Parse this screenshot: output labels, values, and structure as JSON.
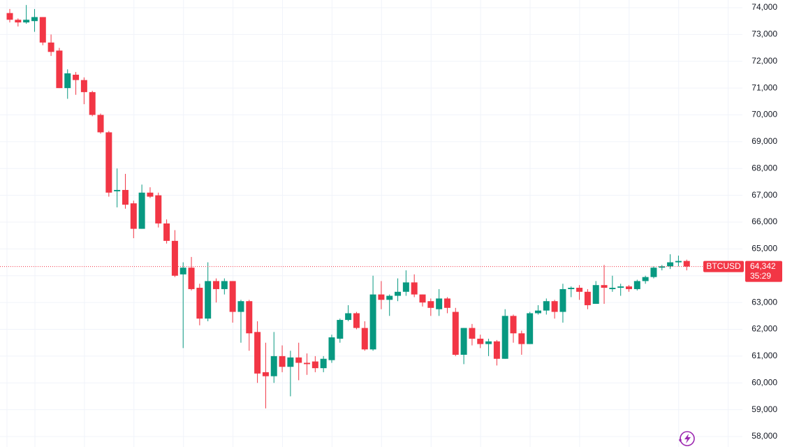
{
  "chart_data": {
    "type": "candlestick",
    "symbol": "BTCUSD",
    "up_color": "#089981",
    "down_color": "#f23645",
    "grid": true,
    "ylim": [
      57609,
      74287
    ],
    "yticks": [
      {
        "value": 58000,
        "label": "58,000"
      },
      {
        "value": 59000,
        "label": "59,000"
      },
      {
        "value": 60000,
        "label": "60,000"
      },
      {
        "value": 61000,
        "label": "61,000"
      },
      {
        "value": 62000,
        "label": "62,000"
      },
      {
        "value": 63000,
        "label": "63,000"
      },
      {
        "value": 64000,
        "label": "64,000"
      },
      {
        "value": 65000,
        "label": "65,000"
      },
      {
        "value": 66000,
        "label": "66,000"
      },
      {
        "value": 67000,
        "label": "67,000"
      },
      {
        "value": 68000,
        "label": "68,000"
      },
      {
        "value": 69000,
        "label": "69,000"
      },
      {
        "value": 70000,
        "label": "70,000"
      },
      {
        "value": 71000,
        "label": "71,000"
      },
      {
        "value": 72000,
        "label": "72,000"
      },
      {
        "value": 73000,
        "label": "73,000"
      },
      {
        "value": 74000,
        "label": "74,000"
      }
    ],
    "last_price": {
      "value": 64342,
      "label": "64,342"
    },
    "countdown": "35:29",
    "open": [
      73800,
      73550,
      73450,
      73500,
      73650,
      72700,
      72400,
      71000,
      71500,
      71300,
      70850,
      70000,
      69350,
      67150,
      67200,
      66700,
      65750,
      67100,
      67000,
      65950,
      65300,
      64050,
      64300,
      63550,
      62400,
      63800,
      63500,
      63800,
      62650,
      63050,
      61900,
      60400,
      60250,
      61000,
      60600,
      60950,
      60750,
      60800,
      60550,
      60850,
      61650,
      62350,
      62600,
      62050,
      61250,
      63300,
      63100,
      63250,
      63400,
      63750,
      63300,
      63050,
      62750,
      63150,
      62650,
      61050,
      62050,
      61650,
      61450,
      61550,
      60900,
      62500,
      61850,
      61450,
      62600,
      62700,
      63050,
      62650,
      63500,
      63550,
      63400,
      62950,
      63650,
      63500,
      63550,
      63600,
      63500,
      63800,
      63950,
      64300,
      64350,
      64500,
      64550
    ],
    "high": [
      73950,
      73600,
      74100,
      73950,
      73650,
      73000,
      72500,
      71700,
      71600,
      71400,
      70900,
      70050,
      69400,
      68000,
      67800,
      66800,
      67400,
      67300,
      67100,
      66100,
      65700,
      64500,
      64700,
      63700,
      64500,
      63900,
      63900,
      63800,
      63100,
      63100,
      62300,
      61500,
      61900,
      61400,
      61200,
      61500,
      61100,
      61000,
      61000,
      61800,
      62400,
      62900,
      62650,
      62300,
      64000,
      63800,
      63300,
      63900,
      64200,
      64050,
      63300,
      63150,
      63500,
      63200,
      62800,
      62050,
      62200,
      61800,
      61650,
      61600,
      62750,
      62550,
      61950,
      62650,
      62900,
      63150,
      63100,
      63700,
      63600,
      63650,
      63500,
      63800,
      64400,
      64000,
      63700,
      63650,
      63850,
      64000,
      64350,
      64400,
      64800,
      64750,
      64600
    ],
    "low": [
      73450,
      73300,
      73400,
      73100,
      72600,
      72200,
      71000,
      70600,
      70750,
      70400,
      69950,
      69300,
      66950,
      66550,
      66500,
      65400,
      65750,
      66900,
      65800,
      65200,
      63950,
      61300,
      63450,
      62150,
      62300,
      63000,
      63300,
      62250,
      61500,
      61200,
      60000,
      59050,
      60000,
      60400,
      59500,
      60100,
      60300,
      60400,
      60400,
      60750,
      61500,
      62300,
      62000,
      61200,
      61200,
      62750,
      62500,
      63050,
      63250,
      63200,
      62850,
      62500,
      62500,
      62600,
      61000,
      60700,
      61400,
      61300,
      61000,
      60650,
      60900,
      61500,
      61050,
      61450,
      62550,
      62550,
      62400,
      62250,
      63200,
      63100,
      62750,
      62950,
      62950,
      63400,
      63250,
      63400,
      63450,
      63700,
      63900,
      64200,
      64250,
      64350,
      64200
    ],
    "close": [
      73550,
      73450,
      73550,
      73650,
      72700,
      72350,
      71000,
      71550,
      71300,
      70850,
      70000,
      69350,
      67100,
      67200,
      66650,
      65750,
      67100,
      66950,
      65950,
      65300,
      64000,
      64300,
      63500,
      62400,
      63800,
      63500,
      63800,
      62650,
      63050,
      61850,
      60350,
      60250,
      61000,
      60600,
      60950,
      60750,
      60700,
      60550,
      60900,
      61700,
      62350,
      62600,
      62050,
      61250,
      63300,
      63100,
      63250,
      63400,
      63750,
      63300,
      63000,
      62800,
      63150,
      62800,
      61050,
      62050,
      61650,
      61450,
      61550,
      60900,
      62500,
      61850,
      61450,
      62600,
      62700,
      63050,
      62650,
      63500,
      63550,
      63400,
      62900,
      63650,
      63550,
      63550,
      63600,
      63500,
      63800,
      63950,
      64300,
      64350,
      64500,
      64550,
      64342
    ]
  }
}
